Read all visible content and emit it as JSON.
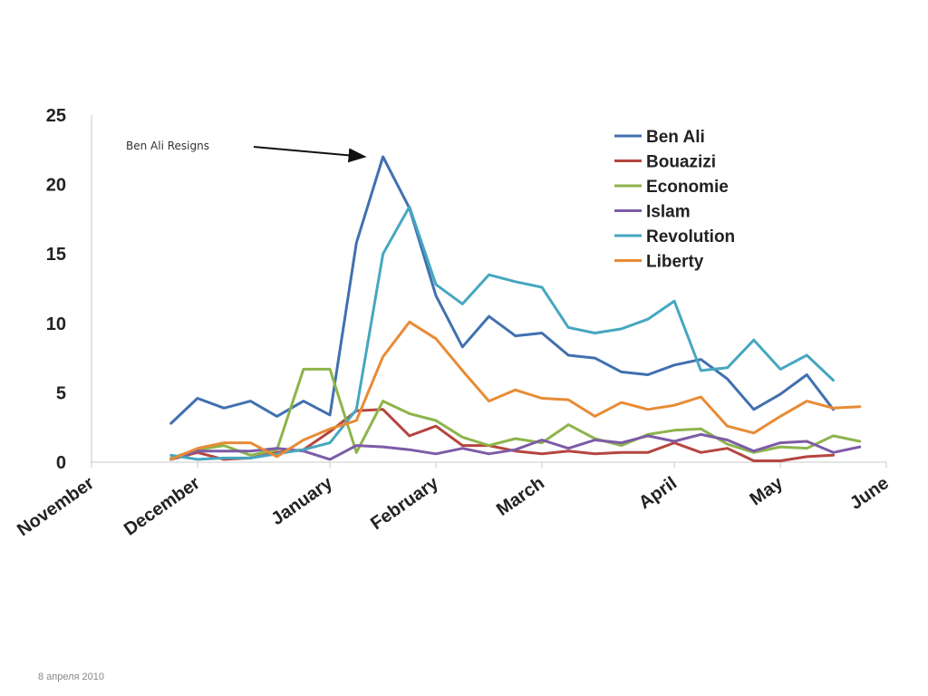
{
  "chart_data": {
    "type": "line",
    "ylim": [
      0,
      25
    ],
    "yticks": [
      0,
      5,
      10,
      15,
      20,
      25
    ],
    "xlim": [
      0,
      30
    ],
    "months": [
      {
        "label": "November",
        "x": 0
      },
      {
        "label": "December",
        "x": 4
      },
      {
        "label": "January",
        "x": 9
      },
      {
        "label": "February",
        "x": 13
      },
      {
        "label": "March",
        "x": 17
      },
      {
        "label": "April",
        "x": 22
      },
      {
        "label": "May",
        "x": 26
      },
      {
        "label": "June",
        "x": 30
      }
    ],
    "x": [
      3,
      4,
      5,
      6,
      7,
      8,
      9,
      10,
      11,
      12,
      13,
      14,
      15,
      16,
      17,
      18,
      19,
      20,
      21,
      22,
      23,
      24,
      25,
      26,
      27,
      28,
      29
    ],
    "series": [
      {
        "name": "Ben Ali",
        "color": "#4170b0",
        "values": [
          2.8,
          4.6,
          3.9,
          4.4,
          3.3,
          4.4,
          3.4,
          15.8,
          22.0,
          18.3,
          12.0,
          8.3,
          10.5,
          9.1,
          9.3,
          7.7,
          7.5,
          6.5,
          6.3,
          7.0,
          7.4,
          6.0,
          3.8,
          4.9,
          6.3,
          3.8,
          null
        ]
      },
      {
        "name": "Bouazizi",
        "color": "#b5453f",
        "values": [
          0.2,
          0.7,
          0.2,
          0.3,
          0.7,
          0.9,
          2.2,
          3.7,
          3.8,
          1.9,
          2.6,
          1.2,
          1.2,
          0.8,
          0.6,
          0.8,
          0.6,
          0.7,
          0.7,
          1.4,
          0.7,
          1.0,
          0.1,
          0.1,
          0.4,
          0.5,
          null
        ]
      },
      {
        "name": "Economie",
        "color": "#8db44c",
        "values": [
          0.3,
          0.9,
          1.2,
          0.5,
          0.9,
          6.7,
          6.7,
          0.7,
          4.4,
          3.5,
          3.0,
          1.8,
          1.2,
          1.7,
          1.4,
          2.7,
          1.7,
          1.2,
          2.0,
          2.3,
          2.4,
          1.3,
          0.7,
          1.1,
          1.0,
          1.9,
          1.5
        ]
      },
      {
        "name": "Islam",
        "color": "#7d5ba6",
        "values": [
          0.2,
          0.8,
          0.8,
          0.8,
          1.0,
          0.8,
          0.2,
          1.2,
          1.1,
          0.9,
          0.6,
          1.0,
          0.6,
          0.9,
          1.6,
          1.0,
          1.6,
          1.4,
          1.9,
          1.5,
          2.0,
          1.6,
          0.8,
          1.4,
          1.5,
          0.7,
          1.1
        ]
      },
      {
        "name": "Revolution",
        "color": "#46a7c0",
        "values": [
          0.5,
          0.2,
          0.3,
          0.3,
          0.6,
          0.9,
          1.4,
          3.8,
          15.0,
          18.4,
          12.8,
          11.4,
          13.5,
          13.0,
          12.6,
          9.7,
          9.3,
          9.6,
          10.3,
          11.6,
          6.6,
          6.8,
          8.8,
          6.7,
          7.7,
          5.9,
          null
        ]
      },
      {
        "name": "Liberty",
        "color": "#e88b35",
        "values": [
          0.2,
          1.0,
          1.4,
          1.4,
          0.4,
          1.6,
          2.4,
          3.0,
          7.6,
          10.1,
          8.9,
          6.6,
          4.4,
          5.2,
          4.6,
          4.5,
          3.3,
          4.3,
          3.8,
          4.1,
          4.7,
          2.6,
          2.1,
          3.3,
          4.4,
          3.9,
          4.0
        ]
      }
    ],
    "annotation": {
      "text": "Ben Ali Resigns",
      "target_x": 11,
      "target_y": 22.0
    },
    "legend_position": "top-right",
    "grid": false
  },
  "footer": {
    "date_text": "8 апреля 2010"
  }
}
